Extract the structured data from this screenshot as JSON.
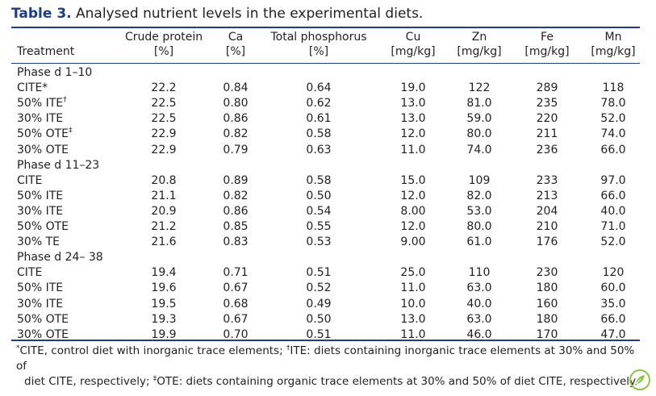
{
  "caption": {
    "label": "Table 3.",
    "text": "Analysed nutrient levels in the experimental diets."
  },
  "headers": [
    {
      "l1": "",
      "l2": "Treatment"
    },
    {
      "l1": "Crude protein",
      "l2": "[%]"
    },
    {
      "l1": "Ca",
      "l2": "[%]"
    },
    {
      "l1": "Total phosphorus",
      "l2": "[%]"
    },
    {
      "l1": "Cu",
      "l2": "[mg/kg]"
    },
    {
      "l1": "Zn",
      "l2": "[mg/kg]"
    },
    {
      "l1": "Fe",
      "l2": "[mg/kg]"
    },
    {
      "l1": "Mn",
      "l2": "[mg/kg]"
    }
  ],
  "rows": [
    {
      "type": "phase",
      "label": "Phase d 1–10"
    },
    {
      "type": "data",
      "treatment": "CITE*",
      "mark": "",
      "values": [
        "22.2",
        "0.84",
        "0.64",
        "19.0",
        "122",
        "289",
        "118"
      ]
    },
    {
      "type": "data",
      "treatment": "50% ITE",
      "mark": "†",
      "values": [
        "22.5",
        "0.80",
        "0.62",
        "13.0",
        "81.0",
        "235",
        "78.0"
      ]
    },
    {
      "type": "data",
      "treatment": "30% ITE",
      "mark": "",
      "values": [
        "22.5",
        "0.86",
        "0.61",
        "13.0",
        "59.0",
        "220",
        "52.0"
      ]
    },
    {
      "type": "data",
      "treatment": "50% OTE",
      "mark": "‡",
      "values": [
        "22.9",
        "0.82",
        "0.58",
        "12.0",
        "80.0",
        "211",
        "74.0"
      ]
    },
    {
      "type": "data",
      "treatment": "30% OTE",
      "mark": "",
      "values": [
        "22.9",
        "0.79",
        "0.63",
        "11.0",
        "74.0",
        "236",
        "66.0"
      ]
    },
    {
      "type": "phase",
      "label": "Phase d 11–23"
    },
    {
      "type": "data",
      "treatment": "CITE",
      "mark": "",
      "values": [
        "20.8",
        "0.89",
        "0.58",
        "15.0",
        "109",
        "233",
        "97.0"
      ]
    },
    {
      "type": "data",
      "treatment": "50% ITE",
      "mark": "",
      "values": [
        "21.1",
        "0.82",
        "0.50",
        "12.0",
        "82.0",
        "213",
        "66.0"
      ]
    },
    {
      "type": "data",
      "treatment": "30% ITE",
      "mark": "",
      "values": [
        "20.9",
        "0.86",
        "0.54",
        "8.00",
        "53.0",
        "204",
        "40.0"
      ]
    },
    {
      "type": "data",
      "treatment": "50% OTE",
      "mark": "",
      "values": [
        "21.2",
        "0.85",
        "0.55",
        "12.0",
        "80.0",
        "210",
        "71.0"
      ]
    },
    {
      "type": "data",
      "treatment": "30% TE",
      "mark": "",
      "values": [
        "21.6",
        "0.83",
        "0.53",
        "9.00",
        "61.0",
        "176",
        "52.0"
      ]
    },
    {
      "type": "phase",
      "label": "Phase d 24– 38"
    },
    {
      "type": "data",
      "treatment": "CITE",
      "mark": "",
      "values": [
        "19.4",
        "0.71",
        "0.51",
        "25.0",
        "110",
        "230",
        "120"
      ]
    },
    {
      "type": "data",
      "treatment": "50% ITE",
      "mark": "",
      "values": [
        "19.6",
        "0.67",
        "0.52",
        "11.0",
        "63.0",
        "180",
        "60.0"
      ]
    },
    {
      "type": "data",
      "treatment": "30% ITE",
      "mark": "",
      "values": [
        "19.5",
        "0.68",
        "0.49",
        "10.0",
        "40.0",
        "160",
        "35.0"
      ]
    },
    {
      "type": "data",
      "treatment": "50% OTE",
      "mark": "",
      "values": [
        "19.3",
        "0.67",
        "0.50",
        "13.0",
        "63.0",
        "180",
        "66.0"
      ]
    },
    {
      "type": "data",
      "treatment": "30% OTE",
      "mark": "",
      "values": [
        "19.9",
        "0.70",
        "0.51",
        "11.0",
        "46.0",
        "170",
        "47.0"
      ]
    }
  ],
  "footnote": {
    "n1_mark": "*",
    "n1_text": "CITE, control diet with inorganic trace elements; ",
    "n2_mark": "†",
    "n2_text": "ITE: diets containing inorganic trace elements at 30% and 50% of",
    "n2_cont": "diet CITE, respectively; ",
    "n3_mark": "‡",
    "n3_text": "OTE: diets containing organic trace elements at 30% and 50% of diet CITE, respectively."
  },
  "logo": {
    "icon": "publisher-leaf-logo-icon",
    "color": "#8cc63f"
  },
  "colors": {
    "accent": "#1b3e8a",
    "text": "#231f20"
  }
}
